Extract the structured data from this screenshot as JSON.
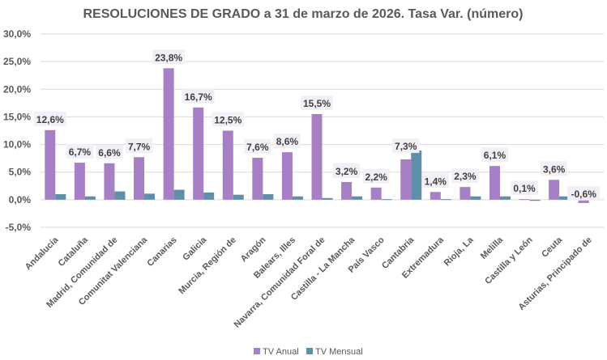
{
  "chart_data": {
    "type": "bar",
    "title": "RESOLUCIONES DE GRADO a 31 de marzo de 2026. Tasa Var. (número)",
    "xlabel": "",
    "ylabel": "",
    "ylim": [
      -5,
      30
    ],
    "yticks": [
      -5,
      0,
      5,
      10,
      15,
      20,
      25,
      30
    ],
    "ytick_labels": [
      "-5,0%",
      "0,0%",
      "5,0%",
      "10,0%",
      "15,0%",
      "20,0%",
      "25,0%",
      "30,0%"
    ],
    "grid": true,
    "legend_position": "bottom",
    "categories": [
      "Andalucía",
      "Cataluña",
      "Madrid, Comunidad de",
      "Comunitat Valenciana",
      "Canarias",
      "Galicia",
      "Murcia, Región de",
      "Aragón",
      "Balears, Illes",
      "Navarra, Comunidad Foral de",
      "Castilla - La Mancha",
      "País Vasco",
      "Cantabria",
      "Extremadura",
      "Rioja, La",
      "Melilla",
      "Castilla y León",
      "Ceuta",
      "Asturias, Principado de"
    ],
    "series": [
      {
        "name": "TV Anual",
        "color": "#A67FC4",
        "values": [
          12.6,
          6.7,
          6.6,
          7.7,
          23.8,
          16.7,
          12.5,
          7.6,
          8.6,
          15.5,
          3.2,
          2.2,
          7.3,
          1.4,
          2.3,
          6.1,
          0.1,
          3.6,
          -0.6
        ],
        "labels": [
          "12,6%",
          "6,7%",
          "6,6%",
          "7,7%",
          "23,8%",
          "16,7%",
          "12,5%",
          "7,6%",
          "8,6%",
          "15,5%",
          "3,2%",
          "2,2%",
          "7,3%",
          "1,4%",
          "2,3%",
          "6,1%",
          "0,1%",
          "3,6%",
          "-0,6%"
        ]
      },
      {
        "name": "TV Mensual",
        "color": "#5F8FA8",
        "values": [
          1.0,
          0.6,
          1.5,
          1.1,
          1.8,
          1.3,
          0.9,
          1.0,
          0.6,
          0.3,
          0.6,
          0.1,
          8.9,
          0.1,
          0.6,
          0.6,
          -0.2,
          0.6,
          0.3
        ]
      }
    ]
  }
}
